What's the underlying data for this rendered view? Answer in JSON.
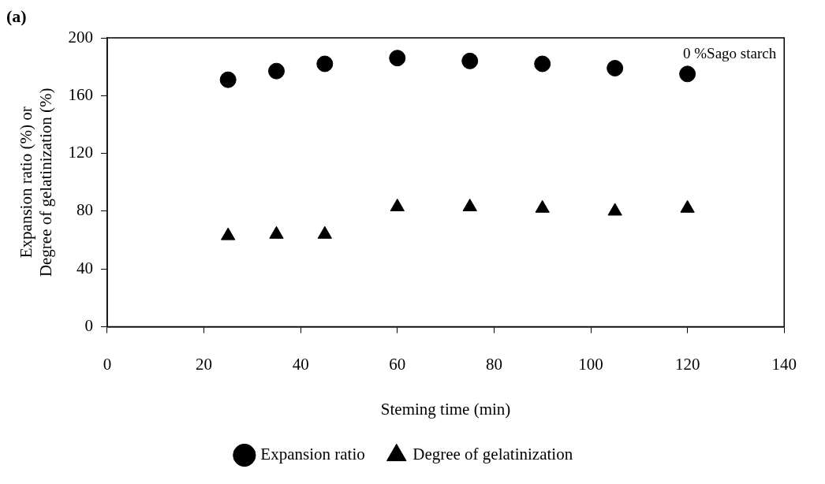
{
  "chart_data": {
    "type": "scatter",
    "xlabel": "Steming time (min)",
    "ylabel": "Expansion ratio (%) or\nDegree of gelatinization (%)",
    "annotations": [
      "(a)",
      "0 %Sago starch"
    ],
    "x": [
      25,
      35,
      45,
      60,
      75,
      90,
      105,
      120
    ],
    "series": [
      {
        "name": "Expansion ratio",
        "color": "#000000",
        "marker": "circle",
        "values": [
          171,
          177,
          182,
          186,
          184,
          182,
          179,
          175
        ]
      },
      {
        "name": "Degree of gelatinization",
        "color": "#000000",
        "marker": "triangle",
        "values": [
          63,
          64,
          64,
          83,
          83,
          82,
          80,
          82
        ]
      }
    ],
    "xlim": [
      0,
      140
    ],
    "xticks": [
      0,
      20,
      40,
      60,
      80,
      100,
      120,
      140
    ],
    "ylim": [
      0,
      200
    ],
    "yticks": [
      0,
      40,
      80,
      120,
      160,
      200
    ],
    "grid": false,
    "legend": "bottom"
  }
}
